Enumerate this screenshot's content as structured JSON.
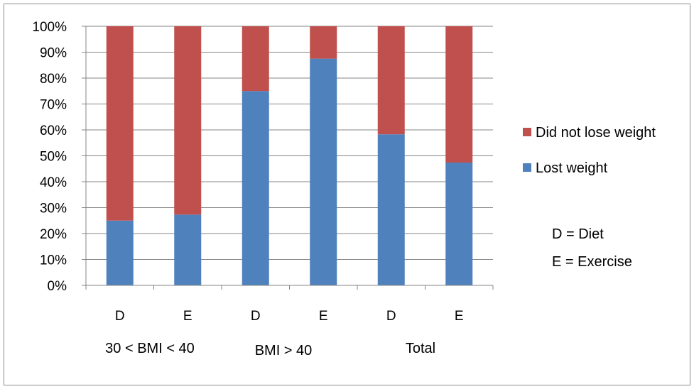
{
  "chart_data": {
    "type": "bar",
    "stacked": true,
    "categories": [
      "D",
      "E",
      "D",
      "E",
      "D",
      "E"
    ],
    "groups": [
      {
        "label": "30 < BMI < 40",
        "categories": [
          "D",
          "E"
        ]
      },
      {
        "label": "BMI > 40",
        "categories": [
          "D",
          "E"
        ]
      },
      {
        "label": "Total",
        "categories": [
          "D",
          "E"
        ]
      }
    ],
    "series": [
      {
        "name": "Lost weight",
        "color": "#4f81bd",
        "values": [
          25,
          27.3,
          75,
          87.5,
          58.3,
          47.4
        ]
      },
      {
        "name": "Did not lose weight",
        "color": "#c0504d",
        "values": [
          75,
          72.7,
          25,
          12.5,
          41.7,
          52.6
        ]
      }
    ],
    "ylim": [
      0,
      100
    ],
    "yticks": [
      "0%",
      "10%",
      "20%",
      "30%",
      "40%",
      "50%",
      "60%",
      "70%",
      "80%",
      "90%",
      "100%"
    ],
    "grid": true,
    "legend_position": "right",
    "legend_order": [
      "Did not lose weight",
      "Lost weight"
    ],
    "annotations": [
      "D = Diet",
      "E = Exercise"
    ],
    "title": "",
    "xlabel": "",
    "ylabel": ""
  }
}
